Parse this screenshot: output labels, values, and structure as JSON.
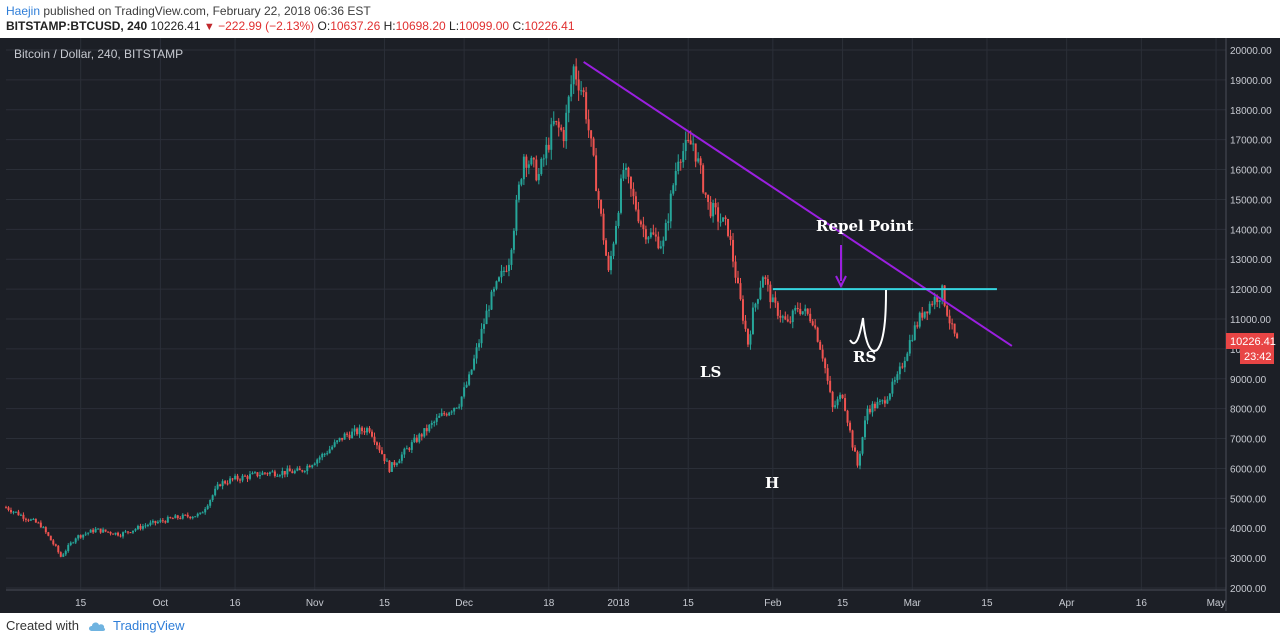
{
  "header": {
    "author": "Haejin",
    "published_text": "published on TradingView.com, February 22, 2018 06:36 EST",
    "symbol": "BITSTAMP:BTCUSD, 240",
    "last": "10226.41",
    "change": "−222.99 (−2.13%)",
    "open_label": "O:",
    "open": "10637.26",
    "high_label": "H:",
    "high": "10698.20",
    "low_label": "L:",
    "low": "10099.00",
    "close_label": "C:",
    "close": "10226.41"
  },
  "footer": {
    "created_with": "Created with",
    "brand": "TradingView"
  },
  "colors": {
    "background": "#1c1f26",
    "grid": "#2b2f38",
    "up": "#26a69a",
    "down": "#ef5350",
    "trendline": "#9b1fe0",
    "neckline": "#35d5e0",
    "annotation": "#ffffff",
    "price_label": "#e84545"
  },
  "chart_data": {
    "type": "candlestick",
    "title": "Bitcoin / Dollar, 240, BITSTAMP",
    "ylim": [
      2000,
      20000
    ],
    "y_ticks": [
      "20000.00",
      "19000.00",
      "18000.00",
      "17000.00",
      "16000.00",
      "15000.00",
      "14000.00",
      "13000.00",
      "12000.00",
      "11000.00",
      "10000.00",
      "9000.00",
      "8000.00",
      "7000.00",
      "6000.00",
      "5000.00",
      "4000.00",
      "3000.00",
      "2000.00"
    ],
    "x_ticks": [
      "15",
      "Oct",
      "16",
      "Nov",
      "15",
      "Dec",
      "18",
      "2018",
      "15",
      "Feb",
      "15",
      "Mar",
      "15",
      "Apr",
      "16",
      "May"
    ],
    "x_tick_days": [
      14,
      30,
      45,
      61,
      75,
      91,
      108,
      122,
      136,
      153,
      167,
      181,
      196,
      212,
      227,
      242
    ],
    "x_range_days": [
      -1,
      244
    ],
    "last_price_label": "10226.41",
    "countdown_label": "23:42",
    "price_path": [
      [
        -1,
        4700
      ],
      [
        3,
        4350
      ],
      [
        6,
        4100
      ],
      [
        9,
        3350
      ],
      [
        10,
        3050
      ],
      [
        13,
        3700
      ],
      [
        17,
        3950
      ],
      [
        22,
        3800
      ],
      [
        27,
        4100
      ],
      [
        33,
        4350
      ],
      [
        38,
        4450
      ],
      [
        42,
        5500
      ],
      [
        45,
        5650
      ],
      [
        51,
        5850
      ],
      [
        58,
        5900
      ],
      [
        63,
        6500
      ],
      [
        67,
        7100
      ],
      [
        72,
        7350
      ],
      [
        76,
        6000
      ],
      [
        81,
        6900
      ],
      [
        86,
        7700
      ],
      [
        90,
        8200
      ],
      [
        92,
        9000
      ],
      [
        96,
        11500
      ],
      [
        100,
        13000
      ],
      [
        103,
        16500
      ],
      [
        106,
        15800
      ],
      [
        109,
        17500
      ],
      [
        111,
        17200
      ],
      [
        113,
        19400
      ],
      [
        115,
        18500
      ],
      [
        118,
        15000
      ],
      [
        120,
        12500
      ],
      [
        123,
        16000
      ],
      [
        127,
        14000
      ],
      [
        131,
        13500
      ],
      [
        134,
        16500
      ],
      [
        137,
        16900
      ],
      [
        140,
        14800
      ],
      [
        144,
        14000
      ],
      [
        146,
        12000
      ],
      [
        148,
        10200
      ],
      [
        149,
        11200
      ],
      [
        151,
        12500
      ],
      [
        153,
        11500
      ],
      [
        156,
        10800
      ],
      [
        158,
        11400
      ],
      [
        161,
        11000
      ],
      [
        163,
        9800
      ],
      [
        165,
        8000
      ],
      [
        167,
        8500
      ],
      [
        169,
        6800
      ],
      [
        170,
        6100
      ],
      [
        172,
        8000
      ],
      [
        175,
        8200
      ],
      [
        178,
        9000
      ],
      [
        181,
        10500
      ],
      [
        183,
        11200
      ],
      [
        185,
        11600
      ],
      [
        187,
        11900
      ],
      [
        189,
        10637
      ],
      [
        190,
        10226
      ]
    ],
    "annotations": [
      {
        "text": "Repel Point"
      },
      {
        "text": "LS"
      },
      {
        "text": "H"
      },
      {
        "text": "RS"
      }
    ],
    "trendline": {
      "from": [
        115,
        19600
      ],
      "to": [
        201,
        10100
      ]
    },
    "neckline": {
      "from": [
        153,
        12000
      ],
      "to": [
        198,
        12000
      ]
    }
  }
}
